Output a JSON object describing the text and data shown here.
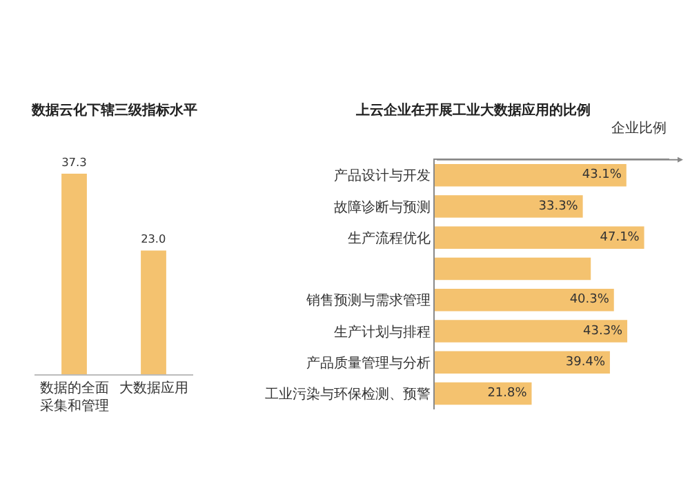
{
  "chart_data": [
    {
      "type": "bar",
      "title": "数据云化下辖三级指标水平",
      "categories": [
        "数据的全面采集和管理",
        "大数据应用"
      ],
      "values": [
        37.3,
        23.0
      ],
      "value_labels": [
        "37.3",
        "23.0"
      ],
      "color": "#f4c26f"
    },
    {
      "type": "bar",
      "orientation": "horizontal",
      "title": "上云企业在开展工业大数据应用的比例",
      "xlabel": "企业比例",
      "categories": [
        "产品设计与开发",
        "故障诊断与预测",
        "生产流程优化",
        null,
        "销售预测与需求管理",
        "生产计划与排程",
        "产品质量管理与分析",
        "工业污染与环保检测、预警"
      ],
      "values": [
        43.1,
        33.3,
        47.1,
        35.1,
        40.3,
        43.3,
        39.4,
        21.8
      ],
      "value_labels": [
        "43.1%",
        "33.3%",
        "47.1%",
        null,
        "40.3%",
        "43.3%",
        "39.4%",
        "21.8%"
      ],
      "color": "#f4c26f"
    }
  ]
}
